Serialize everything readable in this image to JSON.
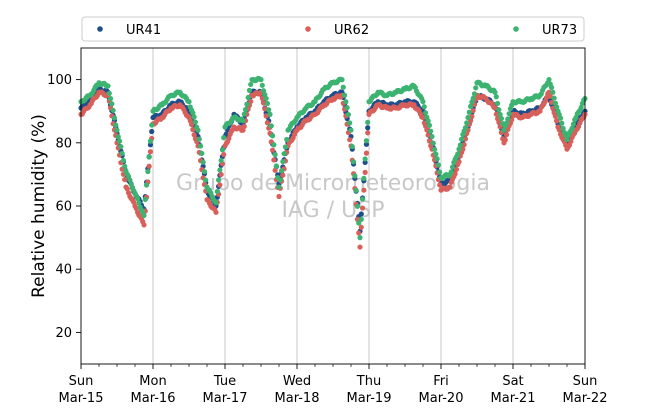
{
  "chart_data": {
    "type": "scatter",
    "title": "",
    "xlabel": "",
    "ylabel": "Relative humidity (%)",
    "ylim": [
      10,
      110
    ],
    "yticks": [
      20,
      40,
      60,
      80,
      100
    ],
    "xlim": [
      "2020-03-15 00:00",
      "2020-03-22 00:00"
    ],
    "xticks": [
      {
        "day": "Sun",
        "date": "Mar-15"
      },
      {
        "day": "Mon",
        "date": "Mar-16"
      },
      {
        "day": "Tue",
        "date": "Mar-17"
      },
      {
        "day": "Wed",
        "date": "Mar-18"
      },
      {
        "day": "Thu",
        "date": "Mar-19"
      },
      {
        "day": "Fri",
        "date": "Mar-20"
      },
      {
        "day": "Sat",
        "date": "Mar-21"
      },
      {
        "day": "Sun",
        "date": "Mar-22"
      }
    ],
    "grid": "vertical at day ticks",
    "legend_position": "top, above plot",
    "watermark": [
      "Grupo de Micrometeorologia",
      "IAG / USP"
    ],
    "series": [
      {
        "name": "UR41",
        "color": "#1f4e8c",
        "x": [
          "2020-03-15 00:00",
          "2020-03-15 03:00",
          "2020-03-15 06:00",
          "2020-03-15 09:00",
          "2020-03-15 12:00",
          "2020-03-15 15:00",
          "2020-03-15 18:00",
          "2020-03-15 21:00",
          "2020-03-16 00:00",
          "2020-03-16 03:00",
          "2020-03-16 06:00",
          "2020-03-16 09:00",
          "2020-03-16 12:00",
          "2020-03-16 15:00",
          "2020-03-16 18:00",
          "2020-03-16 21:00",
          "2020-03-17 00:00",
          "2020-03-17 03:00",
          "2020-03-17 06:00",
          "2020-03-17 09:00",
          "2020-03-17 12:00",
          "2020-03-17 15:00",
          "2020-03-17 18:00",
          "2020-03-17 21:00",
          "2020-03-18 00:00",
          "2020-03-18 03:00",
          "2020-03-18 06:00",
          "2020-03-18 09:00",
          "2020-03-18 12:00",
          "2020-03-18 15:00",
          "2020-03-18 18:00",
          "2020-03-18 21:00",
          "2020-03-19 00:00",
          "2020-03-19 03:00",
          "2020-03-19 06:00",
          "2020-03-19 09:00",
          "2020-03-19 12:00",
          "2020-03-19 15:00",
          "2020-03-19 18:00",
          "2020-03-19 21:00",
          "2020-03-20 00:00",
          "2020-03-20 03:00",
          "2020-03-20 06:00",
          "2020-03-20 09:00",
          "2020-03-20 12:00",
          "2020-03-20 15:00",
          "2020-03-20 18:00",
          "2020-03-20 21:00",
          "2020-03-21 00:00",
          "2020-03-21 03:00",
          "2020-03-21 06:00",
          "2020-03-21 09:00",
          "2020-03-21 12:00",
          "2020-03-21 15:00",
          "2020-03-21 18:00",
          "2020-03-21 21:00",
          "2020-03-22 00:00"
        ],
        "y": [
          91,
          93,
          97,
          96,
          83,
          70,
          64,
          59,
          88,
          89,
          92,
          93,
          90,
          82,
          65,
          60,
          82,
          89,
          86,
          96,
          96,
          85,
          67,
          80,
          85,
          88,
          90,
          93,
          95,
          96,
          82,
          52,
          90,
          93,
          92,
          92,
          93,
          93,
          90,
          80,
          67,
          68,
          76,
          85,
          95,
          94,
          92,
          82,
          90,
          89,
          90,
          91,
          95,
          86,
          80,
          86,
          90
        ]
      },
      {
        "name": "UR62",
        "color": "#d9605a",
        "x": [
          "2020-03-15 00:00",
          "2020-03-15 03:00",
          "2020-03-15 06:00",
          "2020-03-15 09:00",
          "2020-03-15 12:00",
          "2020-03-15 15:00",
          "2020-03-15 18:00",
          "2020-03-15 21:00",
          "2020-03-16 00:00",
          "2020-03-16 03:00",
          "2020-03-16 06:00",
          "2020-03-16 09:00",
          "2020-03-16 12:00",
          "2020-03-16 15:00",
          "2020-03-16 18:00",
          "2020-03-16 21:00",
          "2020-03-17 00:00",
          "2020-03-17 03:00",
          "2020-03-17 06:00",
          "2020-03-17 09:00",
          "2020-03-17 12:00",
          "2020-03-17 15:00",
          "2020-03-17 18:00",
          "2020-03-17 21:00",
          "2020-03-18 00:00",
          "2020-03-18 03:00",
          "2020-03-18 06:00",
          "2020-03-18 09:00",
          "2020-03-18 12:00",
          "2020-03-18 15:00",
          "2020-03-18 18:00",
          "2020-03-18 21:00",
          "2020-03-19 00:00",
          "2020-03-19 03:00",
          "2020-03-19 06:00",
          "2020-03-19 09:00",
          "2020-03-19 12:00",
          "2020-03-19 15:00",
          "2020-03-19 18:00",
          "2020-03-19 21:00",
          "2020-03-20 00:00",
          "2020-03-20 03:00",
          "2020-03-20 06:00",
          "2020-03-20 09:00",
          "2020-03-20 12:00",
          "2020-03-20 15:00",
          "2020-03-20 18:00",
          "2020-03-20 21:00",
          "2020-03-21 00:00",
          "2020-03-21 03:00",
          "2020-03-21 06:00",
          "2020-03-21 09:00",
          "2020-03-21 12:00",
          "2020-03-21 15:00",
          "2020-03-21 18:00",
          "2020-03-21 21:00",
          "2020-03-22 00:00"
        ],
        "y": [
          89,
          92,
          96,
          95,
          80,
          66,
          60,
          54,
          86,
          88,
          91,
          92,
          88,
          79,
          62,
          58,
          79,
          85,
          84,
          95,
          96,
          83,
          63,
          79,
          84,
          87,
          89,
          92,
          94,
          95,
          79,
          47,
          89,
          92,
          91,
          91,
          92,
          92,
          88,
          78,
          65,
          66,
          74,
          84,
          95,
          94,
          91,
          80,
          89,
          88,
          89,
          90,
          96,
          85,
          78,
          84,
          89
        ]
      },
      {
        "name": "UR73",
        "color": "#3cb371",
        "x": [
          "2020-03-15 00:00",
          "2020-03-15 03:00",
          "2020-03-15 06:00",
          "2020-03-15 09:00",
          "2020-03-15 12:00",
          "2020-03-15 15:00",
          "2020-03-15 18:00",
          "2020-03-15 21:00",
          "2020-03-16 00:00",
          "2020-03-16 03:00",
          "2020-03-16 06:00",
          "2020-03-16 09:00",
          "2020-03-16 12:00",
          "2020-03-16 15:00",
          "2020-03-16 18:00",
          "2020-03-16 21:00",
          "2020-03-17 00:00",
          "2020-03-17 03:00",
          "2020-03-17 06:00",
          "2020-03-17 09:00",
          "2020-03-17 12:00",
          "2020-03-17 15:00",
          "2020-03-17 18:00",
          "2020-03-17 21:00",
          "2020-03-18 00:00",
          "2020-03-18 03:00",
          "2020-03-18 06:00",
          "2020-03-18 09:00",
          "2020-03-18 12:00",
          "2020-03-18 15:00",
          "2020-03-18 18:00",
          "2020-03-18 21:00",
          "2020-03-19 00:00",
          "2020-03-19 03:00",
          "2020-03-19 06:00",
          "2020-03-19 09:00",
          "2020-03-19 12:00",
          "2020-03-19 15:00",
          "2020-03-19 18:00",
          "2020-03-19 21:00",
          "2020-03-20 00:00",
          "2020-03-20 03:00",
          "2020-03-20 06:00",
          "2020-03-20 09:00",
          "2020-03-20 12:00",
          "2020-03-20 15:00",
          "2020-03-20 18:00",
          "2020-03-20 21:00",
          "2020-03-21 00:00",
          "2020-03-21 03:00",
          "2020-03-21 06:00",
          "2020-03-21 09:00",
          "2020-03-21 12:00",
          "2020-03-21 15:00",
          "2020-03-21 18:00",
          "2020-03-21 21:00",
          "2020-03-22 00:00"
        ],
        "y": [
          93,
          95,
          99,
          98,
          84,
          71,
          64,
          57,
          90,
          92,
          95,
          96,
          93,
          84,
          66,
          61,
          85,
          88,
          87,
          100,
          100,
          89,
          66,
          84,
          88,
          91,
          93,
          97,
          99,
          100,
          84,
          50,
          93,
          96,
          95,
          96,
          97,
          98,
          93,
          82,
          69,
          70,
          78,
          88,
          99,
          98,
          96,
          84,
          93,
          93,
          94,
          95,
          100,
          90,
          81,
          88,
          94
        ]
      }
    ]
  }
}
